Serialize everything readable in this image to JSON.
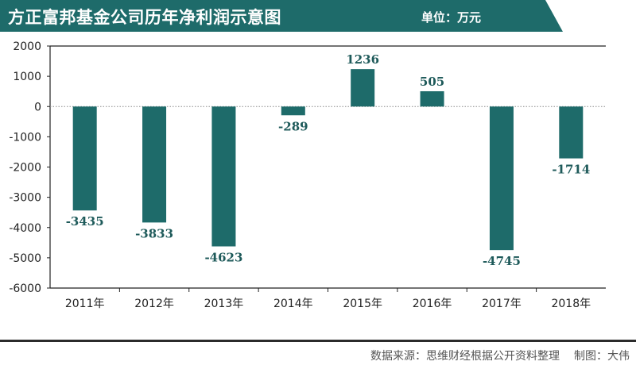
{
  "header": {
    "title": "方正富邦基金公司历年净利润示意图",
    "unit": "单位：万元",
    "bg_color": "#1e6b6a"
  },
  "footer": {
    "source": "数据来源：思维财经根据公开资料整理",
    "credit": "制图：大伟"
  },
  "chart_data": {
    "type": "bar",
    "categories": [
      "2011年",
      "2012年",
      "2013年",
      "2014年",
      "2015年",
      "2016年",
      "2017年",
      "2018年"
    ],
    "values": [
      -3435,
      -3833,
      -4623,
      -289,
      1236,
      505,
      -4745,
      -1714
    ],
    "value_labels": [
      "-3435",
      "-3833",
      "-4623",
      "-289",
      "1236",
      "505",
      "-4745",
      "-1714"
    ],
    "ylim": [
      -6000,
      2000
    ],
    "yticks": [
      2000,
      1000,
      0,
      -1000,
      -2000,
      -3000,
      -4000,
      -5000,
      -6000
    ],
    "ytick_labels": [
      "2000",
      "1000",
      "0",
      "-1000",
      "-2000",
      "-3000",
      "-4000",
      "-5000",
      "-6000"
    ],
    "xlabel": "",
    "ylabel": "",
    "bar_color": "#1e6b6a",
    "label_color": "#1e5a5a",
    "grid": false,
    "zero_line": "dotted"
  }
}
